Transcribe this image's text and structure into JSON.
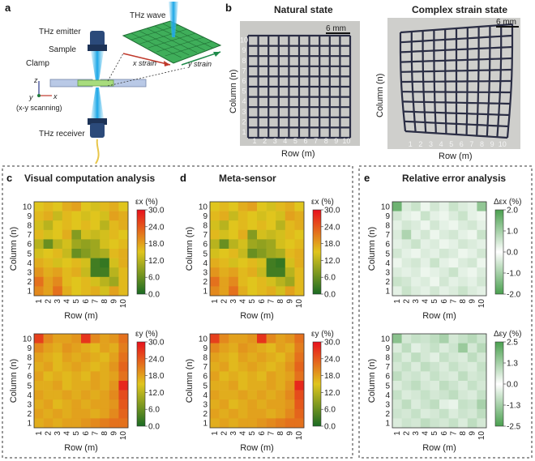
{
  "panels": {
    "a": {
      "label": "a",
      "thz_emitter": "THz emitter",
      "sample": "Sample",
      "clamp": "Clamp",
      "scan_note": "(x-y scanning)",
      "thz_receiver": "THz receiver",
      "thz_wave": "THz wave",
      "x_strain": "x strain",
      "y_strain": "y strain",
      "axis_z": "z",
      "axis_y": "y",
      "axis_x": "x"
    },
    "b": {
      "label": "b",
      "natural_title": "Natural state",
      "complex_title": "Complex strain state",
      "scale": "6 mm",
      "col_axis": "Column (n)",
      "row_axis": "Row (m)"
    },
    "c": {
      "label": "c",
      "title": "Visual computation analysis"
    },
    "d": {
      "label": "d",
      "title": "Meta-sensor"
    },
    "e": {
      "label": "e",
      "title": "Relative error analysis"
    }
  },
  "colors": {
    "title_c": "#b03a2e",
    "title_d": "#1f1fa8",
    "title_e": "#1f7a3a",
    "strain_low": "#1a6b23",
    "strain_mid": "#e0c51d",
    "strain_high": "#e8101c",
    "error_low": "#ffffff",
    "error_high": "#4aa04f"
  },
  "axes": {
    "row_label": "Row (m)",
    "col_label": "Column (n)",
    "ticks": [
      "1",
      "2",
      "3",
      "4",
      "5",
      "6",
      "7",
      "8",
      "9",
      "10"
    ],
    "cb_label_ex": "εx (%)",
    "cb_label_ey": "εy (%)",
    "cb_label_dex": "Δεx (%)",
    "cb_label_dey": "Δεy (%)"
  },
  "chart_data": [
    {
      "type": "heatmap",
      "panel": "c-top",
      "title": "",
      "xlabel": "Row (m)",
      "ylabel": "Column (n)",
      "colorbar_label": "εx (%)",
      "colorbar_ticks": [
        "30.0",
        "24.0",
        "18.0",
        "12.0",
        "6.0",
        "0.0"
      ],
      "range": [
        0,
        30
      ],
      "values": [
        [
          15,
          16,
          15,
          17,
          18,
          15,
          14,
          16,
          17,
          15
        ],
        [
          16,
          17,
          13,
          16,
          15,
          14,
          15,
          14,
          18,
          17
        ],
        [
          14,
          12,
          15,
          16,
          15,
          16,
          15,
          12,
          16,
          17
        ],
        [
          16,
          14,
          15,
          17,
          8,
          14,
          13,
          14,
          16,
          15
        ],
        [
          12,
          6,
          12,
          14,
          10,
          9,
          10,
          14,
          15,
          16
        ],
        [
          14,
          15,
          16,
          13,
          6,
          8,
          10,
          11,
          16,
          17
        ],
        [
          17,
          16,
          14,
          15,
          16,
          14,
          3,
          2,
          14,
          17
        ],
        [
          19,
          17,
          18,
          16,
          17,
          13,
          3,
          3,
          12,
          16
        ],
        [
          22,
          18,
          20,
          16,
          15,
          16,
          14,
          12,
          10,
          16
        ],
        [
          20,
          18,
          22,
          17,
          15,
          16,
          17,
          14,
          18,
          16
        ]
      ]
    },
    {
      "type": "heatmap",
      "panel": "c-bottom",
      "title": "",
      "xlabel": "Row (m)",
      "ylabel": "Column (n)",
      "colorbar_label": "εy (%)",
      "colorbar_ticks": [
        "30.0",
        "24.0",
        "18.0",
        "12.0",
        "6.0",
        "0.0"
      ],
      "range": [
        0,
        30
      ],
      "values": [
        [
          26,
          20,
          18,
          18,
          19,
          27,
          20,
          18,
          19,
          22
        ],
        [
          20,
          18,
          17,
          19,
          18,
          17,
          16,
          18,
          17,
          21
        ],
        [
          18,
          17,
          16,
          18,
          17,
          18,
          17,
          16,
          18,
          22
        ],
        [
          17,
          18,
          16,
          17,
          18,
          17,
          16,
          17,
          19,
          23
        ],
        [
          18,
          16,
          17,
          16,
          17,
          16,
          18,
          17,
          18,
          22
        ],
        [
          17,
          17,
          18,
          16,
          17,
          17,
          18,
          17,
          19,
          28
        ],
        [
          18,
          17,
          17,
          18,
          17,
          18,
          17,
          18,
          20,
          25
        ],
        [
          17,
          18,
          16,
          17,
          18,
          17,
          18,
          18,
          19,
          24
        ],
        [
          18,
          17,
          18,
          17,
          18,
          18,
          17,
          18,
          20,
          23
        ],
        [
          17,
          18,
          17,
          18,
          18,
          19,
          20,
          21,
          22,
          22
        ]
      ]
    },
    {
      "type": "heatmap",
      "panel": "d-top",
      "title": "",
      "xlabel": "Row (m)",
      "ylabel": "Column (n)",
      "colorbar_label": "εx (%)",
      "colorbar_ticks": [
        "30.0",
        "24.0",
        "18.0",
        "12.0",
        "6.0",
        "0.0"
      ],
      "range": [
        0,
        30
      ],
      "values": [
        [
          15,
          16,
          15,
          17,
          18,
          15,
          14,
          16,
          17,
          15
        ],
        [
          16,
          17,
          13,
          16,
          15,
          14,
          15,
          14,
          18,
          17
        ],
        [
          14,
          12,
          15,
          16,
          15,
          16,
          15,
          12,
          16,
          17
        ],
        [
          16,
          14,
          15,
          17,
          8,
          14,
          13,
          14,
          16,
          15
        ],
        [
          12,
          6,
          12,
          14,
          10,
          9,
          10,
          14,
          15,
          16
        ],
        [
          14,
          15,
          16,
          13,
          6,
          8,
          10,
          11,
          16,
          17
        ],
        [
          17,
          16,
          14,
          15,
          16,
          14,
          3,
          2,
          14,
          17
        ],
        [
          19,
          17,
          18,
          16,
          17,
          13,
          3,
          3,
          12,
          16
        ],
        [
          22,
          18,
          20,
          16,
          15,
          16,
          14,
          12,
          10,
          16
        ],
        [
          20,
          18,
          22,
          17,
          15,
          16,
          17,
          14,
          18,
          16
        ]
      ]
    },
    {
      "type": "heatmap",
      "panel": "d-bottom",
      "title": "",
      "xlabel": "Row (m)",
      "ylabel": "Column (n)",
      "colorbar_label": "εy (%)",
      "colorbar_ticks": [
        "30.0",
        "24.0",
        "18.0",
        "12.0",
        "6.0",
        "0.0"
      ],
      "range": [
        0,
        30
      ],
      "values": [
        [
          26,
          20,
          18,
          18,
          19,
          27,
          20,
          18,
          19,
          22
        ],
        [
          20,
          18,
          17,
          19,
          18,
          17,
          16,
          18,
          17,
          21
        ],
        [
          18,
          17,
          16,
          18,
          17,
          18,
          17,
          16,
          18,
          22
        ],
        [
          17,
          18,
          16,
          17,
          18,
          17,
          16,
          17,
          19,
          23
        ],
        [
          18,
          16,
          17,
          16,
          17,
          16,
          18,
          17,
          18,
          22
        ],
        [
          17,
          17,
          18,
          16,
          17,
          17,
          18,
          17,
          19,
          28
        ],
        [
          18,
          17,
          17,
          18,
          17,
          18,
          17,
          18,
          20,
          25
        ],
        [
          17,
          18,
          16,
          17,
          18,
          17,
          18,
          18,
          19,
          24
        ],
        [
          18,
          17,
          18,
          17,
          18,
          18,
          17,
          18,
          20,
          23
        ],
        [
          17,
          18,
          17,
          18,
          18,
          19,
          20,
          21,
          22,
          22
        ]
      ]
    },
    {
      "type": "heatmap",
      "panel": "e-top",
      "title": "",
      "xlabel": "Row (m)",
      "ylabel": "Column (n)",
      "colorbar_label": "Δεx (%)",
      "colorbar_ticks": [
        "2.0",
        "1.0",
        "0.0",
        "-1.0",
        "-2.0"
      ],
      "range": [
        -2,
        2
      ],
      "values": [
        [
          1.6,
          0.4,
          0.6,
          0.2,
          0.5,
          0.3,
          0.6,
          0.4,
          0.3,
          1.2
        ],
        [
          0.5,
          0.3,
          0.2,
          0.6,
          0.3,
          0.2,
          0.4,
          0.6,
          0.3,
          0.2
        ],
        [
          0.3,
          0.5,
          0.4,
          0.2,
          0.5,
          0.3,
          0.2,
          0.4,
          0.5,
          0.3
        ],
        [
          0.4,
          0.9,
          0.3,
          0.5,
          0.2,
          0.4,
          0.5,
          0.3,
          0.2,
          0.6
        ],
        [
          0.3,
          0.4,
          0.6,
          0.3,
          0.4,
          0.2,
          0.3,
          0.5,
          0.4,
          0.3
        ],
        [
          0.5,
          0.3,
          0.2,
          0.4,
          0.3,
          0.5,
          0.4,
          0.2,
          0.3,
          0.5
        ],
        [
          0.2,
          0.4,
          0.5,
          0.3,
          0.6,
          0.3,
          0.2,
          0.4,
          0.5,
          0.2
        ],
        [
          0.4,
          0.3,
          0.4,
          0.2,
          0.3,
          0.4,
          0.6,
          0.3,
          0.2,
          0.4
        ],
        [
          0.6,
          0.5,
          0.3,
          0.4,
          0.2,
          0.5,
          0.3,
          0.4,
          0.3,
          0.5
        ],
        [
          0.3,
          0.6,
          0.4,
          0.3,
          0.5,
          0.3,
          0.4,
          0.6,
          0.4,
          0.3
        ]
      ]
    },
    {
      "type": "heatmap",
      "panel": "e-bottom",
      "title": "",
      "xlabel": "Row (m)",
      "ylabel": "Column (n)",
      "colorbar_label": "Δεy (%)",
      "colorbar_ticks": [
        "2.5",
        "1.3",
        "0.0",
        "-1.3",
        "-2.5"
      ],
      "range": [
        -2.5,
        2.5
      ],
      "values": [
        [
          1.6,
          0.6,
          0.8,
          0.7,
          0.9,
          1.2,
          0.6,
          0.8,
          1.0,
          0.7
        ],
        [
          0.5,
          0.9,
          0.4,
          0.6,
          0.8,
          0.5,
          0.7,
          1.4,
          0.6,
          1.0
        ],
        [
          0.8,
          0.5,
          0.9,
          0.6,
          0.4,
          0.8,
          0.6,
          0.5,
          0.9,
          0.6
        ],
        [
          0.6,
          0.8,
          0.5,
          0.9,
          0.7,
          0.5,
          0.8,
          0.6,
          0.5,
          0.8
        ],
        [
          0.9,
          0.6,
          0.7,
          0.5,
          0.8,
          0.6,
          0.5,
          0.9,
          0.6,
          0.7
        ],
        [
          0.5,
          0.7,
          0.9,
          0.6,
          0.5,
          0.9,
          0.7,
          0.5,
          0.8,
          0.6
        ],
        [
          0.8,
          0.5,
          0.6,
          0.8,
          0.6,
          0.7,
          0.9,
          0.6,
          0.5,
          0.8
        ],
        [
          0.6,
          0.9,
          0.5,
          0.7,
          0.9,
          0.4,
          0.3,
          0.8,
          0.7,
          1.2
        ],
        [
          0.7,
          0.6,
          0.8,
          0.5,
          0.6,
          0.8,
          0.5,
          0.7,
          0.6,
          0.9
        ],
        [
          0.5,
          0.7,
          0.6,
          0.9,
          0.7,
          0.6,
          0.8,
          0.5,
          0.9,
          0.6
        ]
      ]
    }
  ]
}
